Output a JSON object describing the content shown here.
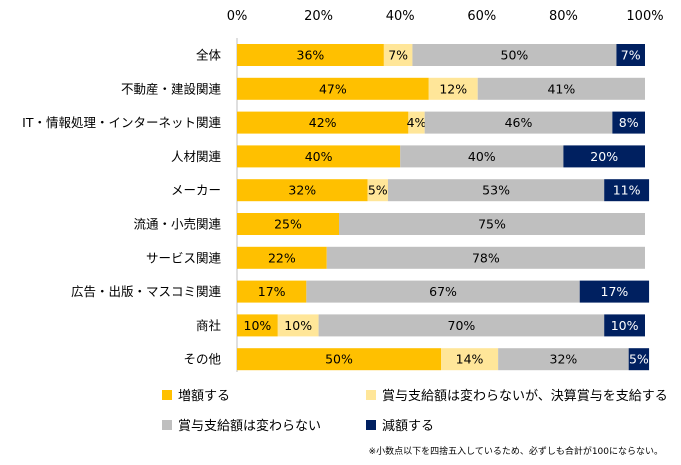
{
  "chart_data": {
    "type": "bar",
    "orientation": "horizontal",
    "stacked": true,
    "xlim": [
      0,
      100
    ],
    "xticks": [
      "0%",
      "20%",
      "40%",
      "60%",
      "80%",
      "100%"
    ],
    "categories": [
      "全体",
      "不動産・建設関連",
      "IT・情報処理・インターネット関連",
      "人材関連",
      "メーカー",
      "流通・小売関連",
      "サービス関連",
      "広告・出版・マスコミ関連",
      "商社",
      "その他"
    ],
    "series": [
      {
        "name": "増額する",
        "color": "#FFC000",
        "label_color": "#000000",
        "values": [
          36,
          47,
          42,
          40,
          32,
          25,
          22,
          17,
          10,
          50
        ],
        "labels": [
          "36%",
          "47%",
          "42%",
          "40%",
          "32%",
          "25%",
          "22%",
          "17%",
          "10%",
          "50%"
        ]
      },
      {
        "name": "賞与支給額は変わらないが、決算賞与を支給する",
        "color": "#FFE699",
        "label_color": "#000000",
        "values": [
          7,
          12,
          4,
          0,
          5,
          0,
          0,
          0,
          10,
          14
        ],
        "labels": [
          "7%",
          "12%",
          "4%",
          "",
          "5%",
          "",
          "",
          "",
          "10%",
          "14%"
        ]
      },
      {
        "name": "賞与支給額は変わらない",
        "color": "#BFBFBF",
        "label_color": "#000000",
        "values": [
          50,
          41,
          46,
          40,
          53,
          75,
          78,
          67,
          70,
          32
        ],
        "labels": [
          "50%",
          "41%",
          "46%",
          "40%",
          "53%",
          "75%",
          "78%",
          "67%",
          "70%",
          "32%"
        ]
      },
      {
        "name": "減額する",
        "color": "#002060",
        "label_color": "#FFFFFF",
        "values": [
          7,
          0,
          8,
          20,
          11,
          0,
          0,
          17,
          10,
          5
        ],
        "labels": [
          "7%",
          "",
          "8%",
          "20%",
          "11%",
          "",
          "",
          "17%",
          "10%",
          "5%"
        ]
      }
    ],
    "legend_position": "bottom"
  },
  "footnote": "※小数点以下を四捨五入しているため、必ずしも合計が100にならない。"
}
